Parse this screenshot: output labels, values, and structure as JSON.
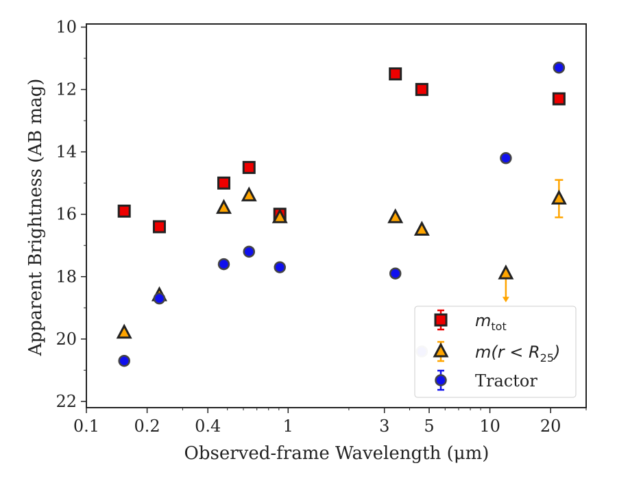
{
  "chart_data": {
    "type": "scatter",
    "xlabel": "Observed-frame Wavelength (μm)",
    "ylabel": "Apparent Brightness (AB mag)",
    "xscale": "log",
    "xlim": [
      0.1,
      30
    ],
    "ylim": [
      22.2,
      9.9
    ],
    "y_inverted": true,
    "x_ticks": [
      0.1,
      0.2,
      0.4,
      1,
      3,
      5,
      10,
      20
    ],
    "x_tick_labels": [
      "0.1",
      "0.2",
      "0.4",
      "1",
      "3",
      "5",
      "10",
      "20"
    ],
    "y_ticks": [
      10,
      12,
      14,
      16,
      18,
      20,
      22
    ],
    "y_tick_labels": [
      "10",
      "12",
      "14",
      "16",
      "18",
      "20",
      "22"
    ],
    "grid": false,
    "legend_position": "lower-right",
    "series": [
      {
        "name": "m_tot",
        "marker": "square",
        "color": "#ee0000",
        "edge_color": "#222222",
        "points": [
          {
            "x": 0.154,
            "y": 15.9
          },
          {
            "x": 0.23,
            "y": 16.4
          },
          {
            "x": 0.48,
            "y": 15.0
          },
          {
            "x": 0.64,
            "y": 14.5
          },
          {
            "x": 0.91,
            "y": 16.0
          },
          {
            "x": 3.4,
            "y": 11.5
          },
          {
            "x": 4.6,
            "y": 12.0
          },
          {
            "x": 22.0,
            "y": 12.3
          }
        ]
      },
      {
        "name": "m(r < R25)",
        "marker": "triangle",
        "color": "#ffa500",
        "edge_color": "#222222",
        "points": [
          {
            "x": 0.154,
            "y": 19.8
          },
          {
            "x": 0.23,
            "y": 18.6
          },
          {
            "x": 0.48,
            "y": 15.8
          },
          {
            "x": 0.64,
            "y": 15.4
          },
          {
            "x": 0.91,
            "y": 16.1
          },
          {
            "x": 3.4,
            "y": 16.1
          },
          {
            "x": 4.6,
            "y": 16.5
          },
          {
            "x": 12.0,
            "y": 17.9,
            "upper_limit": true
          },
          {
            "x": 22.0,
            "y": 15.5,
            "yerr": 0.6
          }
        ]
      },
      {
        "name": "Tractor",
        "marker": "circle",
        "color": "#1010ee",
        "edge_color": "#444444",
        "points": [
          {
            "x": 0.154,
            "y": 20.7
          },
          {
            "x": 0.23,
            "y": 18.7
          },
          {
            "x": 0.48,
            "y": 17.6
          },
          {
            "x": 0.64,
            "y": 17.2
          },
          {
            "x": 0.91,
            "y": 17.7
          },
          {
            "x": 3.4,
            "y": 17.9
          },
          {
            "x": 4.6,
            "y": 20.4
          },
          {
            "x": 12.0,
            "y": 14.2
          },
          {
            "x": 22.0,
            "y": 11.3
          }
        ]
      }
    ],
    "legend": {
      "entries": [
        {
          "main": "m",
          "sub": "tot"
        },
        {
          "main": "m(r < R",
          "sub": "25",
          "tail": ")"
        },
        {
          "main": "Tractor"
        }
      ]
    }
  }
}
